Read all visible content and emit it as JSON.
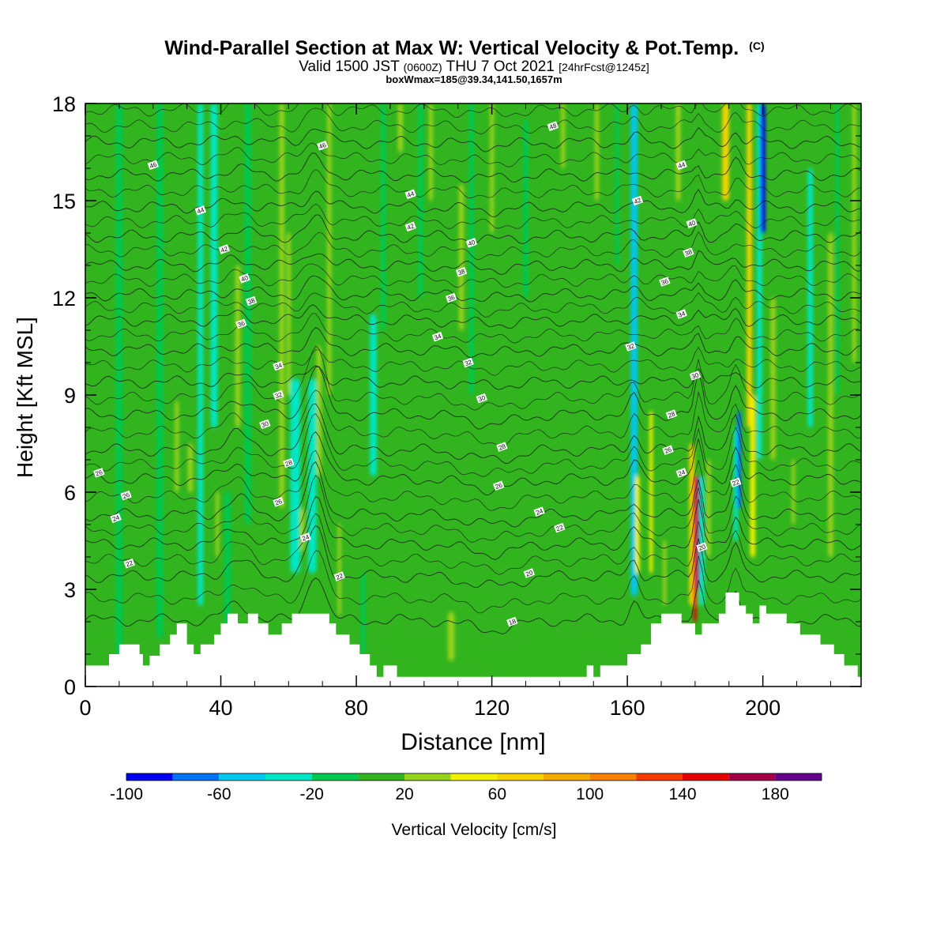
{
  "chart_data": {
    "type": "heatmap",
    "title": "Wind-Parallel Section at Max W: Vertical Velocity & Pot.Temp.",
    "title_mark": "(C)",
    "subtitle": {
      "prefix": "Valid 1500 JST",
      "utc": "(0600Z)",
      "date": "THU 7 Oct 2021",
      "forecast": "[24hrFcst@1245z]"
    },
    "info": "boxWmax=185@39.34,141.50,1657m",
    "xlabel": "Distance [nm]",
    "ylabel": "Height [Kft MSL]",
    "xlim": [
      0,
      229
    ],
    "ylim": [
      0,
      18
    ],
    "x_ticks": [
      0,
      40,
      80,
      120,
      160,
      200
    ],
    "y_ticks": [
      0,
      3,
      6,
      9,
      12,
      15,
      18
    ],
    "colorbar": {
      "label": "Vertical Velocity [cm/s]",
      "tick_labels": [
        -100,
        -60,
        -20,
        20,
        60,
        100,
        140,
        180
      ],
      "levels": [
        -100,
        -80,
        -60,
        -40,
        -20,
        0,
        20,
        40,
        60,
        80,
        100,
        120,
        140,
        160,
        180,
        200
      ],
      "colors": [
        "#0000f0",
        "#0073f0",
        "#00c8f0",
        "#00e6c3",
        "#00c850",
        "#32b41e",
        "#96d21e",
        "#f0f000",
        "#f5d200",
        "#f5aa00",
        "#f58200",
        "#f03c00",
        "#e60000",
        "#a00046",
        "#64008c"
      ]
    },
    "background_color": "#32b41e",
    "terrain_profile": [
      [
        0,
        0.65
      ],
      [
        7,
        0.65
      ],
      [
        7,
        1
      ],
      [
        10,
        1
      ],
      [
        10,
        1.3
      ],
      [
        16,
        1.3
      ],
      [
        16,
        1
      ],
      [
        17,
        1
      ],
      [
        17,
        0.65
      ],
      [
        19,
        0.65
      ],
      [
        19,
        0.95
      ],
      [
        22,
        0.95
      ],
      [
        22,
        1.3
      ],
      [
        25,
        1.3
      ],
      [
        25,
        1.6
      ],
      [
        27,
        1.6
      ],
      [
        27,
        1.95
      ],
      [
        30,
        1.95
      ],
      [
        30,
        1.3
      ],
      [
        32,
        1.3
      ],
      [
        32,
        1
      ],
      [
        34,
        1
      ],
      [
        34,
        1.3
      ],
      [
        38,
        1.3
      ],
      [
        38,
        1.6
      ],
      [
        40,
        1.6
      ],
      [
        40,
        1.95
      ],
      [
        42,
        1.95
      ],
      [
        42,
        2.25
      ],
      [
        45,
        2.25
      ],
      [
        45,
        1.95
      ],
      [
        48,
        1.95
      ],
      [
        48,
        2.25
      ],
      [
        51,
        2.25
      ],
      [
        51,
        1.95
      ],
      [
        54,
        1.95
      ],
      [
        54,
        1.6
      ],
      [
        58,
        1.6
      ],
      [
        58,
        1.95
      ],
      [
        61,
        1.95
      ],
      [
        61,
        2.25
      ],
      [
        72,
        2.25
      ],
      [
        72,
        1.95
      ],
      [
        74,
        1.95
      ],
      [
        74,
        1.6
      ],
      [
        78,
        1.6
      ],
      [
        78,
        1.3
      ],
      [
        81,
        1.3
      ],
      [
        81,
        1
      ],
      [
        84,
        1
      ],
      [
        84,
        0.65
      ],
      [
        86,
        0.65
      ],
      [
        86,
        0.3
      ],
      [
        88,
        0.3
      ],
      [
        88,
        0.65
      ],
      [
        92,
        0.65
      ],
      [
        92,
        0.3
      ],
      [
        148,
        0.3
      ],
      [
        148,
        0.65
      ],
      [
        150,
        0.65
      ],
      [
        150,
        0.3
      ],
      [
        152,
        0.3
      ],
      [
        152,
        0.65
      ],
      [
        160,
        0.65
      ],
      [
        160,
        1
      ],
      [
        164,
        1
      ],
      [
        164,
        1.3
      ],
      [
        167,
        1.3
      ],
      [
        167,
        1.95
      ],
      [
        170,
        1.95
      ],
      [
        170,
        2.25
      ],
      [
        176,
        2.25
      ],
      [
        176,
        1.95
      ],
      [
        180,
        1.95
      ],
      [
        180,
        1.6
      ],
      [
        182,
        1.6
      ],
      [
        182,
        1.95
      ],
      [
        187,
        1.95
      ],
      [
        187,
        2.25
      ],
      [
        189,
        2.25
      ],
      [
        189,
        2.9
      ],
      [
        193,
        2.9
      ],
      [
        193,
        2.5
      ],
      [
        195,
        2.5
      ],
      [
        195,
        2.25
      ],
      [
        197,
        2.25
      ],
      [
        197,
        1.95
      ],
      [
        199,
        1.95
      ],
      [
        199,
        2.5
      ],
      [
        201,
        2.5
      ],
      [
        201,
        2.25
      ],
      [
        207,
        2.25
      ],
      [
        207,
        1.95
      ],
      [
        211,
        1.95
      ],
      [
        211,
        1.6
      ],
      [
        217,
        1.6
      ],
      [
        217,
        1.3
      ],
      [
        221,
        1.3
      ],
      [
        221,
        1.0
      ],
      [
        224,
        1.0
      ],
      [
        224,
        0.65
      ],
      [
        228,
        0.65
      ],
      [
        228,
        0.3
      ],
      [
        229,
        0.3
      ]
    ],
    "vertical_velocity_features": [
      {
        "x": 10,
        "width": 2.0,
        "y_from": 0.8,
        "y_to": 18,
        "value": -10
      },
      {
        "x": 22,
        "width": 2.0,
        "y_from": 1.5,
        "y_to": 18,
        "value": -10
      },
      {
        "x": 27,
        "width": 1.2,
        "y_from": 6,
        "y_to": 8.8,
        "value": 30
      },
      {
        "x": 31,
        "width": 1.5,
        "y_from": 6,
        "y_to": 7.5,
        "value": 35
      },
      {
        "x": 34,
        "width": 1.6,
        "y_from": 2.5,
        "y_to": 18,
        "value": -30
      },
      {
        "x": 38,
        "width": 2.0,
        "y_from": 8,
        "y_to": 18,
        "value": -25
      },
      {
        "x": 39,
        "width": 1.0,
        "y_from": 4,
        "y_to": 6,
        "value": 30
      },
      {
        "x": 42,
        "width": 2.0,
        "y_from": 1.5,
        "y_to": 6,
        "value": -20
      },
      {
        "x": 45,
        "width": 1.5,
        "y_from": 8,
        "y_to": 13,
        "value": 30
      },
      {
        "x": 48,
        "width": 2.0,
        "y_from": 5,
        "y_to": 18,
        "value": -15
      },
      {
        "x": 58,
        "width": 1.5,
        "y_from": 5.5,
        "y_to": 18,
        "value": 35
      },
      {
        "x": 60,
        "width": 1.2,
        "y_from": 9,
        "y_to": 14,
        "value": 35
      },
      {
        "x": 62,
        "width": 3.0,
        "y_from": 3.5,
        "y_to": 9.5,
        "value": -25
      },
      {
        "x": 64,
        "width": 1.5,
        "y_from": 4.2,
        "y_to": 5.5,
        "value": 35
      },
      {
        "x": 67,
        "width": 2.5,
        "y_from": 3.5,
        "y_to": 9.5,
        "value": -30
      },
      {
        "x": 69,
        "width": 1.5,
        "y_from": 6.5,
        "y_to": 10.5,
        "value": 30
      },
      {
        "x": 72,
        "width": 1.2,
        "y_from": 9,
        "y_to": 18,
        "value": 30
      },
      {
        "x": 75,
        "width": 1.0,
        "y_from": 2.2,
        "y_to": 5,
        "value": 30
      },
      {
        "x": 82,
        "width": 1.3,
        "y_from": 1,
        "y_to": 3.5,
        "value": -15
      },
      {
        "x": 85,
        "width": 2.0,
        "y_from": 6.5,
        "y_to": 11.5,
        "value": -25
      },
      {
        "x": 88,
        "width": 1.5,
        "y_from": 11,
        "y_to": 18,
        "value": -20
      },
      {
        "x": 93,
        "width": 1.5,
        "y_from": 16.5,
        "y_to": 18,
        "value": 35
      },
      {
        "x": 99,
        "width": 1.5,
        "y_from": 12,
        "y_to": 18,
        "value": -20
      },
      {
        "x": 102,
        "width": 1.2,
        "y_from": 15,
        "y_to": 18,
        "value": 35
      },
      {
        "x": 108,
        "width": 2.0,
        "y_from": 0.8,
        "y_to": 2.3,
        "value": 35
      },
      {
        "x": 111,
        "width": 1.5,
        "y_from": 11,
        "y_to": 15.5,
        "value": 30
      },
      {
        "x": 114,
        "width": 1.5,
        "y_from": 9,
        "y_to": 18,
        "value": -15
      },
      {
        "x": 120,
        "width": 1.2,
        "y_from": 14,
        "y_to": 18,
        "value": 30
      },
      {
        "x": 130,
        "width": 1.5,
        "y_from": 12,
        "y_to": 17.5,
        "value": -15
      },
      {
        "x": 141,
        "width": 1.2,
        "y_from": 16,
        "y_to": 18,
        "value": 30
      },
      {
        "x": 151,
        "width": 1.2,
        "y_from": 15,
        "y_to": 18,
        "value": 30
      },
      {
        "x": 157,
        "width": 1.2,
        "y_from": 13,
        "y_to": 18,
        "value": -15
      },
      {
        "x": 162,
        "width": 2.0,
        "y_from": 2.8,
        "y_to": 18,
        "value": -50
      },
      {
        "x": 163,
        "width": 1.3,
        "y_from": 3.5,
        "y_to": 6.5,
        "value": 55
      },
      {
        "x": 167,
        "width": 1.0,
        "y_from": 3.5,
        "y_to": 8.5,
        "value": 40
      },
      {
        "x": 171,
        "width": 1.0,
        "y_from": 2.5,
        "y_to": 4.5,
        "value": 30
      },
      {
        "x": 175,
        "width": 1.5,
        "y_from": 15,
        "y_to": 18,
        "value": 30
      },
      {
        "x": 179,
        "width": 1.5,
        "y_from": 2.5,
        "y_to": 7.5,
        "value": 60
      },
      {
        "x": 180,
        "width": 1.0,
        "y_from": 2,
        "y_to": 6.5,
        "value": 145
      },
      {
        "x": 181,
        "width": 1.0,
        "y_from": 3,
        "y_to": 6.5,
        "value": 185
      },
      {
        "x": 182,
        "width": 1.5,
        "y_from": 2.5,
        "y_to": 6.5,
        "value": -40
      },
      {
        "x": 184,
        "width": 1.2,
        "y_from": 4,
        "y_to": 7,
        "value": 30
      },
      {
        "x": 189,
        "width": 2.0,
        "y_from": 15,
        "y_to": 18,
        "value": 65
      },
      {
        "x": 192,
        "width": 1.2,
        "y_from": 4.5,
        "y_to": 8,
        "value": -35
      },
      {
        "x": 193,
        "width": 1.2,
        "y_from": 5.5,
        "y_to": 8.5,
        "value": -65
      },
      {
        "x": 196,
        "width": 1.5,
        "y_from": 8,
        "y_to": 18,
        "value": 60
      },
      {
        "x": 197,
        "width": 1.5,
        "y_from": 4,
        "y_to": 9,
        "value": 55
      },
      {
        "x": 199,
        "width": 1.5,
        "y_from": 7,
        "y_to": 18,
        "value": -40
      },
      {
        "x": 200,
        "width": 1.5,
        "y_from": 14,
        "y_to": 18,
        "value": -90
      },
      {
        "x": 203,
        "width": 1.5,
        "y_from": 7,
        "y_to": 12,
        "value": 35
      },
      {
        "x": 209,
        "width": 1.0,
        "y_from": 5,
        "y_to": 7,
        "value": 30
      },
      {
        "x": 214,
        "width": 1.5,
        "y_from": 8,
        "y_to": 16,
        "value": -30
      },
      {
        "x": 220,
        "width": 1.5,
        "y_from": 4,
        "y_to": 14,
        "value": 30
      },
      {
        "x": 222,
        "width": 1.2,
        "y_from": 9,
        "y_to": 18,
        "value": -20
      },
      {
        "x": 227,
        "width": 1.2,
        "y_from": 10,
        "y_to": 18,
        "value": 30
      }
    ],
    "potential_temperature_contours": {
      "unit": "C",
      "levels": [
        {
          "level": 18,
          "y": 2.05
        },
        {
          "level": 20,
          "y": 3.4
        },
        {
          "level": 22,
          "y": 4.4
        },
        {
          "level": 24,
          "y": 5.3
        },
        {
          "level": 26,
          "y": 6.4
        },
        {
          "level": 28,
          "y": 7.3
        },
        {
          "level": 30,
          "y": 8.4
        },
        {
          "level": 32,
          "y": 9.4
        },
        {
          "level": 34,
          "y": 10.4
        },
        {
          "level": 36,
          "y": 11.3
        },
        {
          "level": 38,
          "y": 12.1
        },
        {
          "level": 40,
          "y": 13.0
        },
        {
          "level": 42,
          "y": 13.9
        },
        {
          "level": 44,
          "y": 14.8
        },
        {
          "level": 46,
          "y": 15.8
        },
        {
          "level": 48,
          "y": 16.8
        }
      ],
      "disturbances": [
        {
          "x": 68,
          "height": 1.5,
          "sigma": 3.5
        },
        {
          "x": 45,
          "height": 0.5,
          "sigma": 5
        },
        {
          "x": 120,
          "height": -0.3,
          "sigma": 10
        },
        {
          "x": 162,
          "height": 0.5,
          "sigma": 2
        },
        {
          "x": 181,
          "height": 1.2,
          "sigma": 1.5
        },
        {
          "x": 192,
          "height": 1.0,
          "sigma": 2
        }
      ],
      "labels": [
        {
          "text": "46",
          "x": 20,
          "y": 16.1
        },
        {
          "text": "44",
          "x": 34,
          "y": 14.7
        },
        {
          "text": "42",
          "x": 41,
          "y": 13.5
        },
        {
          "text": "40",
          "x": 47,
          "y": 12.6
        },
        {
          "text": "38",
          "x": 49,
          "y": 11.9
        },
        {
          "text": "36",
          "x": 46,
          "y": 11.2
        },
        {
          "text": "34",
          "x": 57,
          "y": 9.9
        },
        {
          "text": "32",
          "x": 57,
          "y": 9.0
        },
        {
          "text": "30",
          "x": 53,
          "y": 8.1
        },
        {
          "text": "28",
          "x": 60,
          "y": 6.9
        },
        {
          "text": "26",
          "x": 57,
          "y": 5.7
        },
        {
          "text": "24",
          "x": 65,
          "y": 4.6
        },
        {
          "text": "22",
          "x": 75,
          "y": 3.4
        },
        {
          "text": "46",
          "x": 70,
          "y": 16.7
        },
        {
          "text": "44",
          "x": 96,
          "y": 15.2
        },
        {
          "text": "42",
          "x": 96,
          "y": 14.2
        },
        {
          "text": "40",
          "x": 114,
          "y": 13.7
        },
        {
          "text": "38",
          "x": 111,
          "y": 12.8
        },
        {
          "text": "36",
          "x": 108,
          "y": 12.0
        },
        {
          "text": "34",
          "x": 104,
          "y": 10.8
        },
        {
          "text": "32",
          "x": 113,
          "y": 10.0
        },
        {
          "text": "30",
          "x": 117,
          "y": 8.9
        },
        {
          "text": "28",
          "x": 123,
          "y": 7.4
        },
        {
          "text": "26",
          "x": 122,
          "y": 6.2
        },
        {
          "text": "24",
          "x": 134,
          "y": 5.4
        },
        {
          "text": "22",
          "x": 140,
          "y": 4.9
        },
        {
          "text": "20",
          "x": 131,
          "y": 3.5
        },
        {
          "text": "18",
          "x": 126,
          "y": 2.0
        },
        {
          "text": "26",
          "x": 4,
          "y": 6.6
        },
        {
          "text": "26",
          "x": 12,
          "y": 5.9
        },
        {
          "text": "24",
          "x": 9,
          "y": 5.2
        },
        {
          "text": "22",
          "x": 13,
          "y": 3.8
        },
        {
          "text": "48",
          "x": 138,
          "y": 17.3
        },
        {
          "text": "44",
          "x": 176,
          "y": 16.1
        },
        {
          "text": "42",
          "x": 163,
          "y": 15.0
        },
        {
          "text": "40",
          "x": 179,
          "y": 14.3
        },
        {
          "text": "38",
          "x": 178,
          "y": 13.4
        },
        {
          "text": "36",
          "x": 171,
          "y": 12.5
        },
        {
          "text": "34",
          "x": 176,
          "y": 11.5
        },
        {
          "text": "32",
          "x": 161,
          "y": 10.5
        },
        {
          "text": "30",
          "x": 180,
          "y": 9.6
        },
        {
          "text": "28",
          "x": 173,
          "y": 8.4
        },
        {
          "text": "26",
          "x": 172,
          "y": 7.3
        },
        {
          "text": "24",
          "x": 176,
          "y": 6.6
        },
        {
          "text": "22",
          "x": 192,
          "y": 6.3
        },
        {
          "text": "20",
          "x": 182,
          "y": 4.3
        }
      ]
    }
  }
}
